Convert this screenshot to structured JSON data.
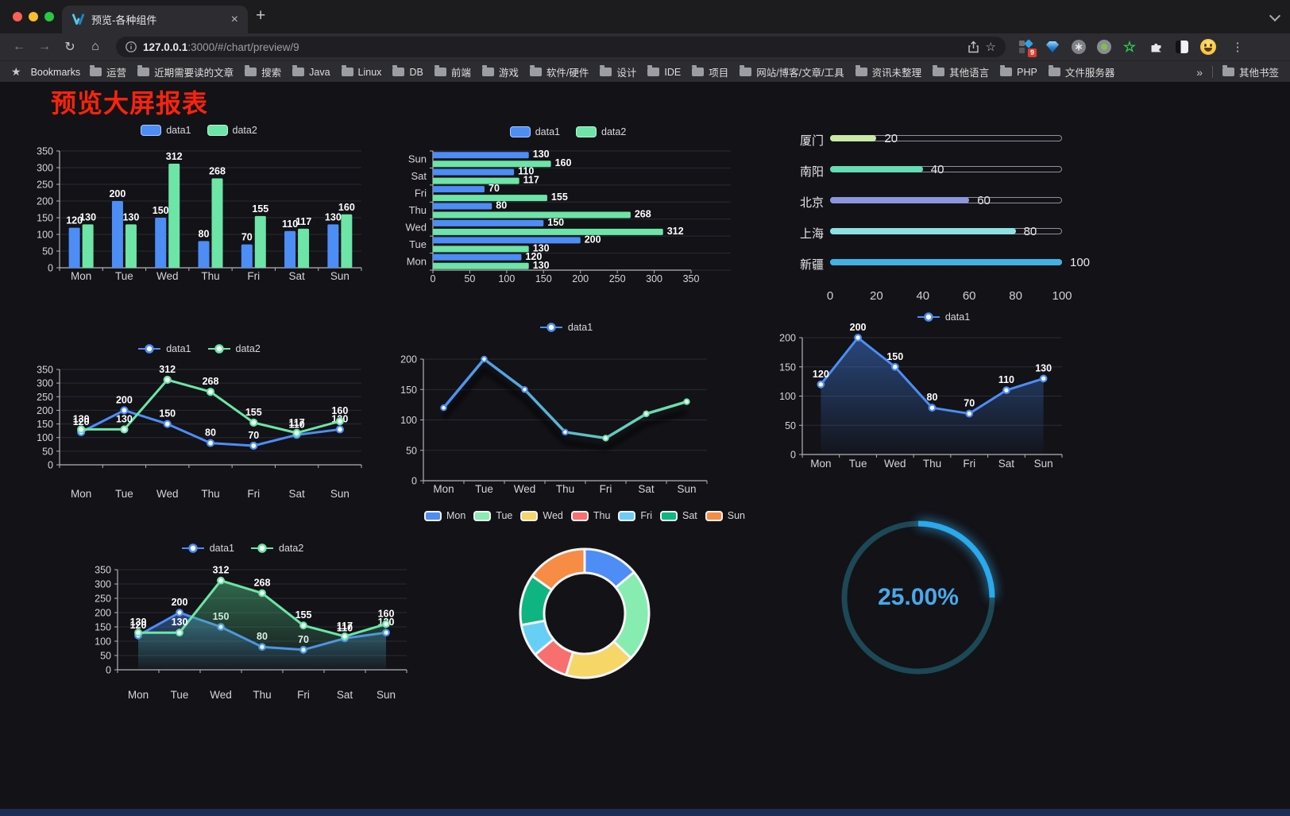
{
  "browser": {
    "tab_title": "预览-各种组件",
    "url_host": "127.0.0.1",
    "url_rest": ":3000/#/chart/preview/9",
    "extension_badge": "9",
    "bookmarks_label": "Bookmarks",
    "bookmarks": [
      "运营",
      "近期需要读的文章",
      "搜索",
      "Java",
      "Linux",
      "DB",
      "前端",
      "游戏",
      "软件/硬件",
      "设计",
      "IDE",
      "项目",
      "网站/博客/文章/工具",
      "资讯未整理",
      "其他语言",
      "PHP",
      "文件服务器"
    ],
    "other_bookmarks": "其他书签",
    "icons": {
      "back": "←",
      "forward": "→",
      "reload": "↻",
      "home": "⌂",
      "star": "☆",
      "menu": "⋮",
      "new_tab": "+",
      "close_tab": "×",
      "overflow": "»",
      "bookmarks_star": "★",
      "green_star": "☆"
    }
  },
  "page": {
    "title": "预览大屏报表",
    "title_color": "#fa230d"
  },
  "chart_data": [
    {
      "id": "bar-grouped",
      "type": "bar",
      "legend_position": "top",
      "categories": [
        "Mon",
        "Tue",
        "Wed",
        "Thu",
        "Fri",
        "Sat",
        "Sun"
      ],
      "series": [
        {
          "name": "data1",
          "color": "#4d8df6",
          "values": [
            120,
            200,
            150,
            80,
            70,
            110,
            130
          ]
        },
        {
          "name": "data2",
          "color": "#6ce5a6",
          "values": [
            130,
            130,
            312,
            268,
            155,
            117,
            160
          ]
        }
      ],
      "ylim": [
        0,
        350
      ],
      "ytick": 50,
      "grid": true
    },
    {
      "id": "bar-horizontal",
      "type": "bar",
      "orientation": "horizontal",
      "legend_position": "top",
      "categories": [
        "Mon",
        "Tue",
        "Wed",
        "Thu",
        "Fri",
        "Sat",
        "Sun"
      ],
      "series": [
        {
          "name": "data1",
          "color": "#4d8df6",
          "values": [
            120,
            200,
            150,
            80,
            70,
            110,
            130
          ]
        },
        {
          "name": "data2",
          "color": "#6ce5a6",
          "values": [
            130,
            130,
            312,
            268,
            155,
            117,
            160
          ]
        }
      ],
      "xlim": [
        0,
        350
      ],
      "xtick": 50,
      "grid": true
    },
    {
      "id": "progress-list",
      "type": "bar",
      "orientation": "horizontal-progress",
      "items": [
        {
          "label": "厦门",
          "value": 20,
          "color": "#c9e9a5"
        },
        {
          "label": "南阳",
          "value": 40,
          "color": "#63ddb4"
        },
        {
          "label": "北京",
          "value": 60,
          "color": "#8d95de"
        },
        {
          "label": "上海",
          "value": 80,
          "color": "#8ce1e3"
        },
        {
          "label": "新疆",
          "value": 100,
          "color": "#41b2e3"
        }
      ],
      "xlim": [
        0,
        100
      ],
      "xticks": [
        0,
        20,
        40,
        60,
        80,
        100
      ]
    },
    {
      "id": "line-double",
      "type": "line",
      "legend_position": "top",
      "categories": [
        "Mon",
        "Tue",
        "Wed",
        "Thu",
        "Fri",
        "Sat",
        "Sun"
      ],
      "series": [
        {
          "name": "data1",
          "color": "#4d8df6",
          "values": [
            120,
            200,
            150,
            80,
            70,
            110,
            130
          ]
        },
        {
          "name": "data2",
          "color": "#6ce5a6",
          "values": [
            130,
            130,
            312,
            268,
            155,
            117,
            160
          ]
        }
      ],
      "ylim": [
        0,
        350
      ],
      "ytick": 50,
      "grid": true
    },
    {
      "id": "line-gradient",
      "type": "line",
      "legend_position": "top",
      "categories": [
        "Mon",
        "Tue",
        "Wed",
        "Thu",
        "Fri",
        "Sat",
        "Sun"
      ],
      "series": [
        {
          "name": "data1",
          "color_start": "#4d8df6",
          "color_end": "#6ce5a6",
          "values": [
            120,
            200,
            150,
            80,
            70,
            110,
            130
          ]
        }
      ],
      "ylim": [
        0,
        200
      ],
      "ytick": 50,
      "grid": true
    },
    {
      "id": "area-single",
      "type": "area",
      "legend_position": "top",
      "categories": [
        "Mon",
        "Tue",
        "Wed",
        "Thu",
        "Fri",
        "Sat",
        "Sun"
      ],
      "series": [
        {
          "name": "data1",
          "color": "#4d8df6",
          "values": [
            120,
            200,
            150,
            80,
            70,
            110,
            130
          ],
          "area_from": "rgba(60,115,205,0.55)",
          "area_to": "rgba(60,115,205,0.03)"
        }
      ],
      "ylim": [
        0,
        200
      ],
      "ytick": 50,
      "grid": true
    },
    {
      "id": "area-double",
      "type": "area",
      "legend_position": "top",
      "categories": [
        "Mon",
        "Tue",
        "Wed",
        "Thu",
        "Fri",
        "Sat",
        "Sun"
      ],
      "series": [
        {
          "name": "data1",
          "color": "#4d8df6",
          "values": [
            120,
            200,
            150,
            80,
            70,
            110,
            130
          ],
          "area_from": "rgba(70,130,220,0.5)",
          "area_to": "rgba(70,130,220,0.03)"
        },
        {
          "name": "data2",
          "color": "#6ce5a6",
          "values": [
            130,
            130,
            312,
            268,
            155,
            117,
            160
          ],
          "area_from": "rgba(80,190,130,0.5)",
          "area_to": "rgba(80,190,130,0.03)"
        }
      ],
      "ylim": [
        0,
        350
      ],
      "ytick": 50,
      "grid": true
    },
    {
      "id": "pie-donut",
      "type": "pie",
      "legend_position": "top",
      "categories": [
        "Mon",
        "Tue",
        "Wed",
        "Thu",
        "Fri",
        "Sat",
        "Sun"
      ],
      "values": [
        120,
        200,
        150,
        80,
        70,
        110,
        130
      ],
      "colors": [
        "#4e8df5",
        "#86ecb0",
        "#f5d667",
        "#f76f6f",
        "#67cff6",
        "#0fb580",
        "#f78c45"
      ]
    },
    {
      "id": "gauge",
      "type": "gauge",
      "value": 25,
      "label": "25.00%",
      "color": "#2aa9ec",
      "track_color": "#1d4855"
    }
  ]
}
